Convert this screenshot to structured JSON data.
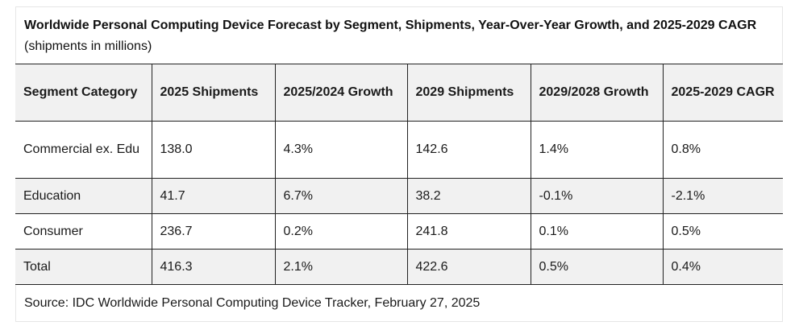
{
  "caption": {
    "title": "Worldwide Personal Computing Device Forecast by Segment, Shipments, Year-Over-Year Growth, and 2025-2029 CAGR",
    "subtitle": "(shipments in millions)"
  },
  "table": {
    "headers": [
      "Segment Category",
      "2025 Shipments",
      "2025/2024 Growth",
      "2029 Shipments",
      "2029/2028 Growth",
      "2025-2029 CAGR"
    ],
    "rows": [
      [
        "Commercial ex. Edu",
        "138.0",
        "4.3%",
        "142.6",
        "1.4%",
        "0.8%"
      ],
      [
        "Education",
        "41.7",
        "6.7%",
        "38.2",
        "-0.1%",
        "-2.1%"
      ],
      [
        "Consumer",
        "236.7",
        "0.2%",
        "241.8",
        "0.1%",
        "0.5%"
      ],
      [
        "Total",
        "416.3",
        "2.1%",
        "422.6",
        "0.5%",
        "0.4%"
      ]
    ]
  },
  "source": "Source:  IDC Worldwide Personal Computing Device Tracker, February 27, 2025",
  "colors": {
    "header_bg": "#f1f1f1",
    "stripe_bg": "#f1f1f1",
    "border": "#222222"
  }
}
